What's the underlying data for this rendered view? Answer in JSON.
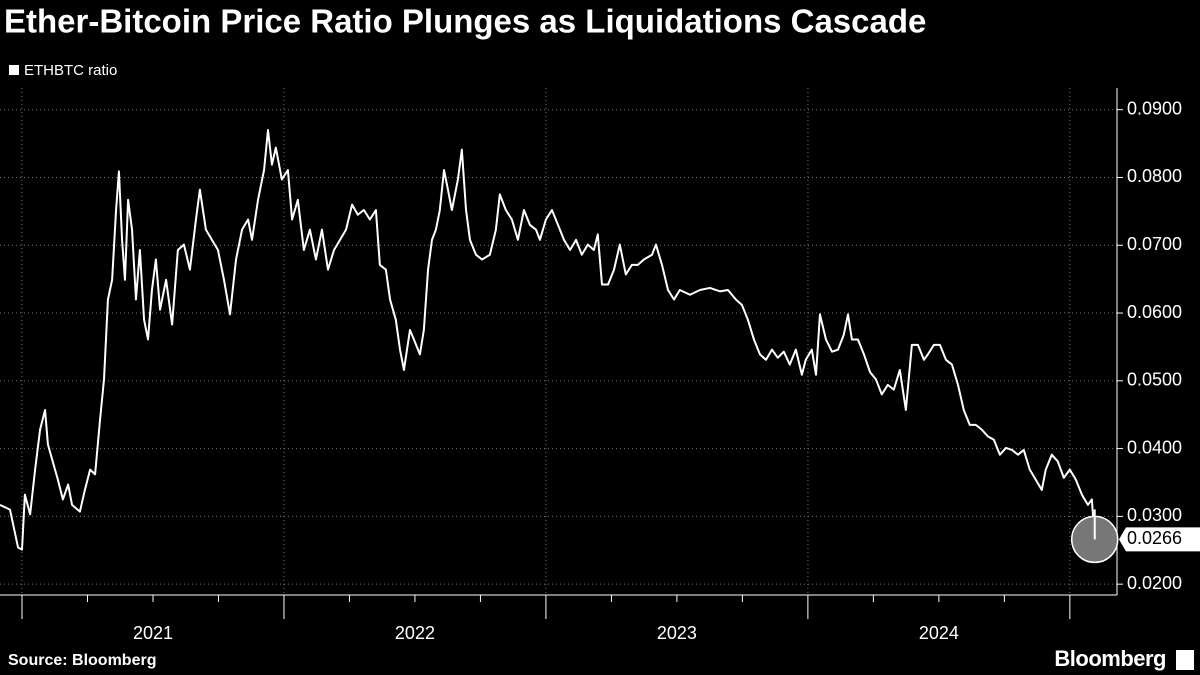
{
  "chart_data": {
    "type": "line",
    "title": "Ether-Bitcoin Price Ratio Plunges as Liquidations Cascade",
    "source": "Source: Bloomberg",
    "brand": "Bloomberg",
    "x": [
      2020.916,
      2020.954,
      2020.985,
      2021.0,
      2021.011,
      2021.031,
      2021.05,
      2021.069,
      2021.088,
      2021.099,
      2021.115,
      2021.137,
      2021.156,
      2021.176,
      2021.191,
      2021.221,
      2021.24,
      2021.26,
      2021.279,
      2021.298,
      2021.313,
      2021.328,
      2021.344,
      2021.359,
      2021.37,
      2021.382,
      2021.393,
      2021.405,
      2021.42,
      2021.435,
      2021.45,
      2021.466,
      2021.481,
      2021.496,
      2021.511,
      2021.527,
      2021.55,
      2021.573,
      2021.595,
      2021.618,
      2021.641,
      2021.664,
      2021.679,
      2021.702,
      2021.725,
      2021.748,
      2021.771,
      2021.794,
      2021.817,
      2021.84,
      2021.863,
      2021.878,
      2021.901,
      2021.924,
      2021.939,
      2021.954,
      2021.969,
      2021.992,
      2022.015,
      2022.031,
      2022.053,
      2022.076,
      2022.099,
      2022.122,
      2022.145,
      2022.168,
      2022.191,
      2022.214,
      2022.237,
      2022.26,
      2022.282,
      2022.305,
      2022.328,
      2022.351,
      2022.366,
      2022.389,
      2022.405,
      2022.427,
      2022.443,
      2022.458,
      2022.481,
      2022.496,
      2022.519,
      2022.534,
      2022.55,
      2022.565,
      2022.58,
      2022.595,
      2022.611,
      2022.626,
      2022.641,
      2022.664,
      2022.679,
      2022.695,
      2022.71,
      2022.733,
      2022.756,
      2022.786,
      2022.809,
      2022.824,
      2022.847,
      2022.87,
      2022.893,
      2022.916,
      2022.939,
      2022.962,
      2022.977,
      2023.0,
      2023.023,
      2023.046,
      2023.069,
      2023.092,
      2023.115,
      2023.137,
      2023.16,
      2023.183,
      2023.198,
      2023.214,
      2023.237,
      2023.26,
      2023.282,
      2023.305,
      2023.328,
      2023.351,
      2023.374,
      2023.405,
      2023.42,
      2023.443,
      2023.466,
      2023.489,
      2023.511,
      2023.55,
      2023.588,
      2023.626,
      2023.664,
      2023.695,
      2023.725,
      2023.748,
      2023.771,
      2023.794,
      2023.817,
      2023.84,
      2023.863,
      2023.885,
      2023.908,
      2023.931,
      2023.954,
      2023.977,
      2023.992,
      2024.015,
      2024.031,
      2024.046,
      2024.069,
      2024.092,
      2024.115,
      2024.137,
      2024.153,
      2024.168,
      2024.191,
      2024.214,
      2024.237,
      2024.26,
      2024.282,
      2024.305,
      2024.328,
      2024.351,
      2024.374,
      2024.397,
      2024.42,
      2024.443,
      2024.458,
      2024.481,
      2024.504,
      2024.527,
      2024.55,
      2024.573,
      2024.595,
      2024.618,
      2024.641,
      2024.664,
      2024.687,
      2024.71,
      2024.733,
      2024.756,
      2024.779,
      2024.802,
      2024.824,
      2024.847,
      2024.87,
      2024.893,
      2024.908,
      2024.931,
      2024.954,
      2024.977,
      2025.0,
      2025.023,
      2025.046,
      2025.069,
      2025.084,
      2025.095
    ],
    "series": [
      {
        "name": "ETHBTC ratio",
        "color": "#ffffff",
        "values": [
          0.0317,
          0.031,
          0.0254,
          0.0251,
          0.0332,
          0.0303,
          0.0369,
          0.0428,
          0.0457,
          0.0406,
          0.0384,
          0.0354,
          0.0325,
          0.0347,
          0.0317,
          0.0307,
          0.0339,
          0.0369,
          0.0362,
          0.0443,
          0.0502,
          0.062,
          0.0649,
          0.0752,
          0.0809,
          0.0708,
          0.0649,
          0.0767,
          0.0723,
          0.062,
          0.0693,
          0.059,
          0.0561,
          0.0634,
          0.0679,
          0.0605,
          0.0649,
          0.0583,
          0.0693,
          0.0701,
          0.0664,
          0.0738,
          0.0782,
          0.0723,
          0.0708,
          0.0693,
          0.0649,
          0.0598,
          0.0679,
          0.0723,
          0.0738,
          0.0708,
          0.0767,
          0.0811,
          0.087,
          0.0819,
          0.0844,
          0.0797,
          0.0811,
          0.0738,
          0.0767,
          0.0693,
          0.0723,
          0.0679,
          0.0723,
          0.0664,
          0.0693,
          0.0708,
          0.0723,
          0.076,
          0.0745,
          0.0752,
          0.0738,
          0.0752,
          0.0671,
          0.0664,
          0.062,
          0.059,
          0.0546,
          0.0516,
          0.0575,
          0.0561,
          0.0539,
          0.0575,
          0.0664,
          0.0708,
          0.0723,
          0.0752,
          0.0811,
          0.0782,
          0.0752,
          0.0797,
          0.0841,
          0.0752,
          0.0708,
          0.0686,
          0.0679,
          0.0686,
          0.0723,
          0.0775,
          0.0752,
          0.0738,
          0.0708,
          0.0752,
          0.073,
          0.0723,
          0.0708,
          0.0738,
          0.0752,
          0.073,
          0.0708,
          0.0693,
          0.0708,
          0.0686,
          0.0701,
          0.0693,
          0.0716,
          0.0642,
          0.0642,
          0.0664,
          0.0701,
          0.0657,
          0.0671,
          0.0671,
          0.0679,
          0.0686,
          0.0701,
          0.0671,
          0.0634,
          0.062,
          0.0634,
          0.0627,
          0.0634,
          0.0637,
          0.0632,
          0.0634,
          0.062,
          0.0612,
          0.059,
          0.0561,
          0.0539,
          0.0531,
          0.0546,
          0.0534,
          0.0543,
          0.0524,
          0.0546,
          0.0509,
          0.0531,
          0.0546,
          0.0509,
          0.0598,
          0.0561,
          0.0543,
          0.0546,
          0.0568,
          0.0598,
          0.0561,
          0.0561,
          0.0539,
          0.0513,
          0.0502,
          0.048,
          0.0494,
          0.0487,
          0.0516,
          0.0457,
          0.0553,
          0.0553,
          0.0531,
          0.0539,
          0.0553,
          0.0553,
          0.0531,
          0.0524,
          0.0494,
          0.0457,
          0.0435,
          0.0435,
          0.0428,
          0.0418,
          0.0413,
          0.0391,
          0.0401,
          0.0398,
          0.0391,
          0.0398,
          0.0369,
          0.0354,
          0.0339,
          0.0369,
          0.0391,
          0.0381,
          0.0357,
          0.0369,
          0.0354,
          0.0332,
          0.0317,
          0.0325,
          0.0266
        ]
      }
    ],
    "last_label": "0.0266",
    "xlim": [
      2020.916,
      2025.18
    ],
    "xgrid": [
      2021,
      2022,
      2023,
      2024,
      2025
    ],
    "xticks": [
      {
        "value": 2021.5,
        "label": "2021"
      },
      {
        "value": 2022.5,
        "label": "2022"
      },
      {
        "value": 2023.5,
        "label": "2023"
      },
      {
        "value": 2024.5,
        "label": "2024"
      }
    ],
    "ylim": [
      0.0184,
      0.0932
    ],
    "yticks": [
      {
        "value": 0.02,
        "label": "0.0200"
      },
      {
        "value": 0.03,
        "label": "0.0300"
      },
      {
        "value": 0.04,
        "label": "0.0400"
      },
      {
        "value": 0.05,
        "label": "0.0500"
      },
      {
        "value": 0.06,
        "label": "0.0600"
      },
      {
        "value": 0.07,
        "label": "0.0700"
      },
      {
        "value": 0.08,
        "label": "0.0800"
      },
      {
        "value": 0.09,
        "label": "0.0900"
      }
    ],
    "grid": true
  }
}
